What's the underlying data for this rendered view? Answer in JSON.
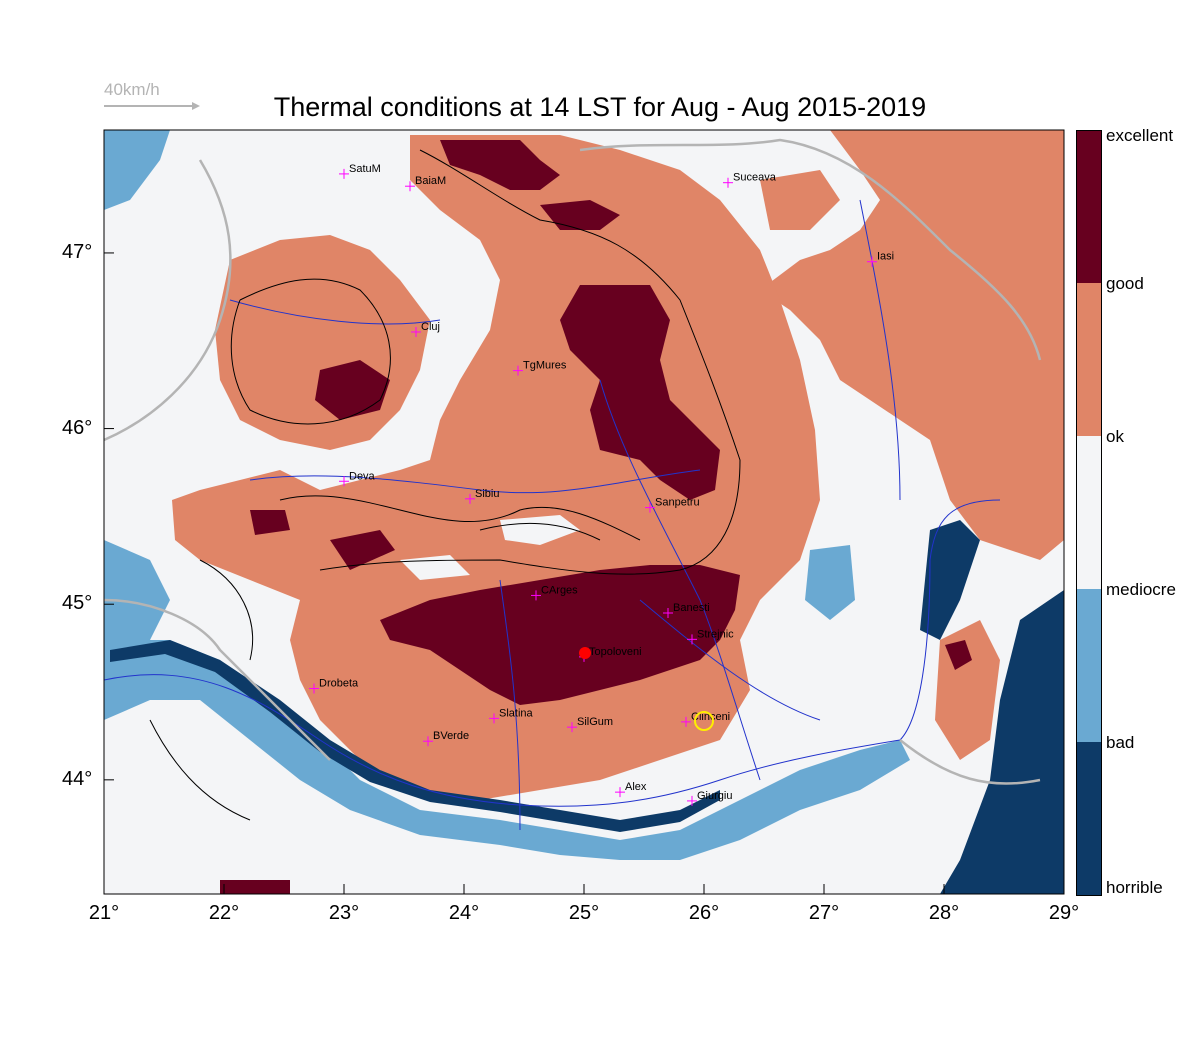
{
  "title": "Thermal conditions at 14 LST for Aug - Aug  2015-2019",
  "reference_vector": {
    "label": "40km/h"
  },
  "axes": {
    "x_ticks": [
      "21°",
      "22°",
      "23°",
      "24°",
      "25°",
      "26°",
      "27°",
      "28°",
      "29°"
    ],
    "y_ticks": [
      "47°",
      "46°",
      "45°",
      "44°"
    ],
    "lon_range": [
      21,
      29
    ],
    "lat_range": [
      43.35,
      47.7
    ]
  },
  "colorbar": {
    "labels": [
      "excellent",
      "good",
      "ok",
      "mediocre",
      "bad",
      "horrible"
    ],
    "colors": {
      "excellent": "#67001f",
      "good": "#e08567",
      "ok": "#f4f5f7",
      "bad": "#6aa9d2",
      "horrible": "#0d3a67"
    }
  },
  "cities": [
    {
      "name": "SatuM",
      "lon": 23.0,
      "lat": 47.45
    },
    {
      "name": "BaiaM",
      "lon": 23.55,
      "lat": 47.38
    },
    {
      "name": "Suceava",
      "lon": 26.2,
      "lat": 47.4
    },
    {
      "name": "Iasi",
      "lon": 27.4,
      "lat": 46.95
    },
    {
      "name": "Cluj",
      "lon": 23.6,
      "lat": 46.55
    },
    {
      "name": "TgMures",
      "lon": 24.45,
      "lat": 46.33
    },
    {
      "name": "Deva",
      "lon": 23.0,
      "lat": 45.7
    },
    {
      "name": "Sibiu",
      "lon": 24.05,
      "lat": 45.6
    },
    {
      "name": "Sanpetru",
      "lon": 25.55,
      "lat": 45.55
    },
    {
      "name": "CArges",
      "lon": 24.6,
      "lat": 45.05
    },
    {
      "name": "Banesti",
      "lon": 25.7,
      "lat": 44.95
    },
    {
      "name": "Strejnic",
      "lon": 25.9,
      "lat": 44.8
    },
    {
      "name": "Topoloveni",
      "lon": 25.0,
      "lat": 44.7
    },
    {
      "name": "Drobeta",
      "lon": 22.75,
      "lat": 44.52
    },
    {
      "name": "Slatina",
      "lon": 24.25,
      "lat": 44.35
    },
    {
      "name": "SilGum",
      "lon": 24.9,
      "lat": 44.3
    },
    {
      "name": "Clinceni",
      "lon": 25.85,
      "lat": 44.33
    },
    {
      "name": "BVerde",
      "lon": 23.7,
      "lat": 44.22
    },
    {
      "name": "Alex",
      "lon": 25.3,
      "lat": 43.93
    },
    {
      "name": "Giurgiu",
      "lon": 25.9,
      "lat": 43.88
    }
  ]
}
